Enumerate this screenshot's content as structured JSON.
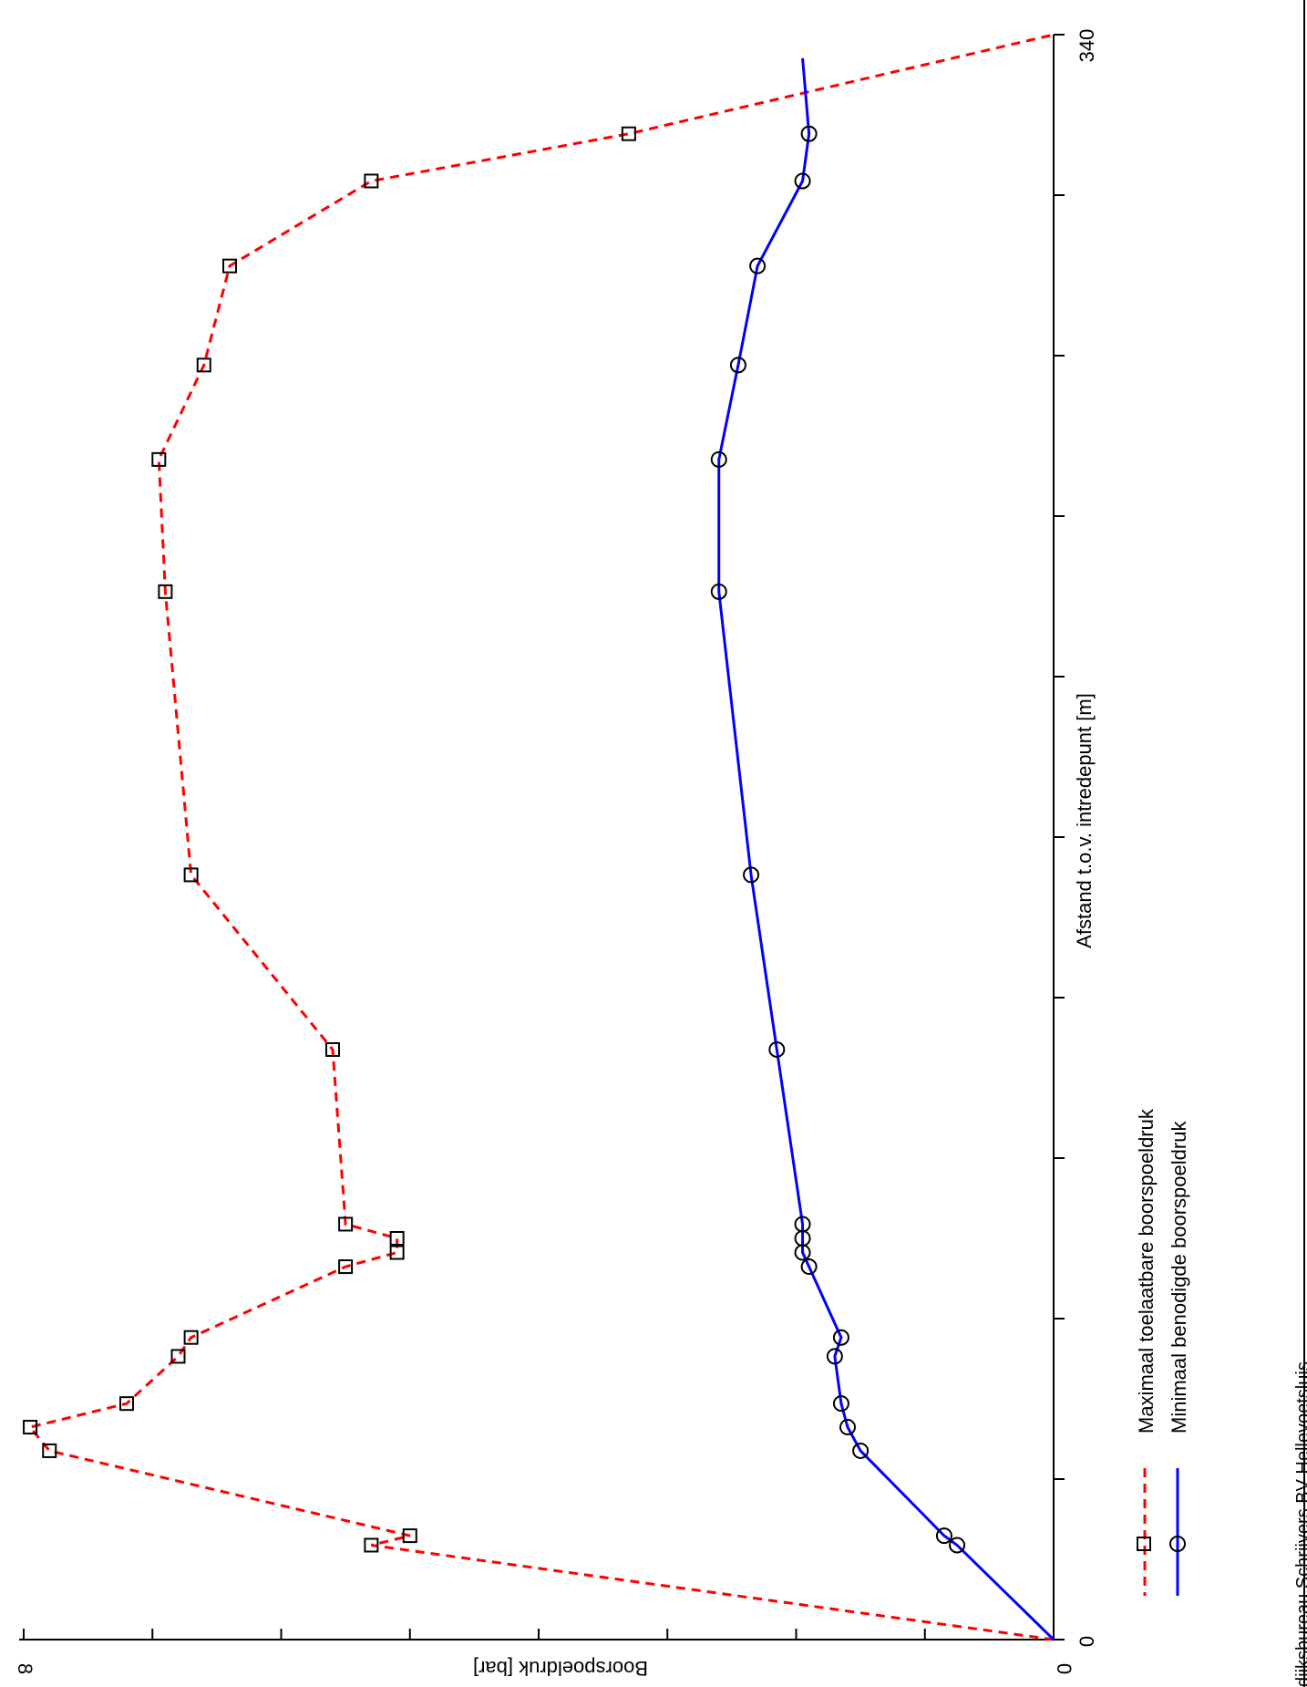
{
  "chart_data": {
    "type": "line",
    "orientation": "rotated-90-clockwise",
    "xlabel": "Afstand t.o.v. intredepunt [m]",
    "ylabel": "Boorspoeldruk [bar]",
    "xlim": [
      0,
      340
    ],
    "ylim": [
      0,
      8
    ],
    "x_tick_labels": [
      "0",
      "340"
    ],
    "y_tick_labels": [
      "0",
      "8"
    ],
    "legend_position": "bottom-left",
    "footer_text": "dijksbureau Schrijvers BV Hellevoetsluis",
    "series": [
      {
        "name": "Maximaal toelaatbare boorspoeldruk",
        "color": "#ff0000",
        "line_style": "dashed",
        "marker": "square",
        "x": [
          0,
          20,
          22,
          40,
          45,
          50,
          60,
          64,
          79,
          82,
          85,
          88,
          125,
          162,
          222,
          250,
          270,
          291,
          309,
          319,
          340
        ],
        "y": [
          0,
          5.3,
          5.0,
          7.8,
          7.95,
          7.2,
          6.8,
          6.7,
          5.5,
          5.1,
          5.1,
          5.5,
          5.6,
          6.7,
          6.9,
          6.95,
          6.6,
          6.4,
          5.3,
          3.3,
          0
        ]
      },
      {
        "name": "Minimaal benodigde boorspoeldruk",
        "color": "#0000ff",
        "line_style": "solid",
        "marker": "circle",
        "x": [
          0,
          20,
          22,
          40,
          45,
          50,
          60,
          64,
          79,
          82,
          85,
          88,
          125,
          162,
          222,
          250,
          270,
          291,
          309,
          319,
          335
        ],
        "y": [
          0,
          0.75,
          0.85,
          1.5,
          1.6,
          1.65,
          1.7,
          1.65,
          1.9,
          1.95,
          1.95,
          1.95,
          2.15,
          2.35,
          2.6,
          2.6,
          2.45,
          2.3,
          1.95,
          1.9,
          1.95
        ]
      }
    ]
  }
}
